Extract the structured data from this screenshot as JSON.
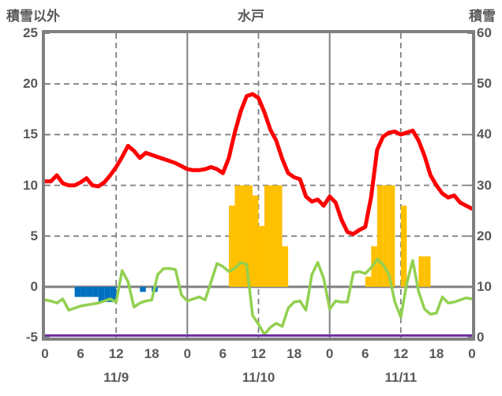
{
  "header": {
    "left_label": "積雪以外",
    "title": "水戸",
    "right_label": "積雪"
  },
  "colors": {
    "red_line": "#FF0000",
    "green_line": "#92D050",
    "orange_bars": "#FFC000",
    "blue_bars": "#0070C0",
    "purple_line": "#7030A0",
    "grid": "#808080",
    "border": "#808080",
    "text": "#595959"
  },
  "chart_data": {
    "type": "line",
    "title": "水戸",
    "left_axis": {
      "label": "積雪以外",
      "min": -5,
      "max": 25,
      "ticks": [
        25,
        20,
        15,
        10,
        5,
        0,
        -5
      ]
    },
    "right_axis": {
      "label": "積雪",
      "min": 0,
      "max": 60,
      "ticks": [
        60,
        50,
        40,
        30,
        20,
        10,
        0
      ]
    },
    "x_axis": {
      "total_hours": 72,
      "tick_hours": [
        0,
        6,
        12,
        18,
        24,
        30,
        36,
        42,
        48,
        54,
        60,
        66,
        72
      ],
      "tick_labels": [
        "0",
        "6",
        "12",
        "18",
        "0",
        "6",
        "12",
        "18",
        "0",
        "6",
        "12",
        "18",
        "0"
      ],
      "day_labels": [
        "11/9",
        "11/10",
        "11/11"
      ],
      "day_boundary_hours": [
        24,
        48
      ],
      "dashed_hours": [
        12,
        36,
        60
      ],
      "grid": "on",
      "legend": "none"
    },
    "series": [
      {
        "name": "red_line",
        "type": "line",
        "axis": "left",
        "values": [
          10.4,
          10.4,
          11.0,
          10.2,
          10.0,
          10.0,
          10.3,
          10.7,
          10.0,
          9.9,
          10.3,
          11.0,
          11.8,
          12.8,
          13.9,
          13.4,
          12.7,
          13.2,
          13.0,
          12.8,
          12.6,
          12.4,
          12.2,
          11.9,
          11.6,
          11.5,
          11.5,
          11.6,
          11.8,
          11.6,
          11.2,
          12.7,
          15.2,
          17.3,
          18.8,
          19.0,
          18.6,
          17.2,
          15.5,
          14.4,
          12.6,
          11.2,
          10.8,
          10.6,
          8.9,
          8.4,
          8.6,
          8.0,
          8.9,
          8.3,
          6.6,
          5.4,
          5.2,
          5.6,
          5.9,
          8.9,
          13.5,
          14.8,
          15.2,
          15.3,
          15.0,
          15.2,
          15.4,
          14.4,
          12.9,
          11.0,
          10.0,
          9.2,
          8.8,
          9.0,
          8.3,
          8.0,
          7.7
        ]
      },
      {
        "name": "green_line",
        "type": "line",
        "axis": "left",
        "values": [
          -1.3,
          -1.4,
          -1.6,
          -1.2,
          -2.3,
          -2.1,
          -1.9,
          -1.8,
          -1.7,
          -1.6,
          -1.4,
          -1.2,
          -1.5,
          1.6,
          0.5,
          -2.0,
          -1.6,
          -1.4,
          -1.3,
          1.2,
          1.8,
          1.8,
          1.7,
          -0.8,
          -1.4,
          -1.2,
          -1.0,
          -1.3,
          0.5,
          2.3,
          2.0,
          1.5,
          1.8,
          2.4,
          2.2,
          -2.8,
          -3.7,
          -4.7,
          -4.0,
          -3.6,
          -3.9,
          -2.1,
          -1.5,
          -1.4,
          -2.3,
          1.2,
          2.4,
          0.8,
          -2.2,
          -1.4,
          -1.5,
          -1.5,
          1.4,
          1.5,
          1.3,
          1.9,
          2.7,
          2.2,
          1.2,
          -1.5,
          -3.0,
          0.3,
          2.6,
          -0.5,
          -2.2,
          -2.7,
          -2.6,
          -1.0,
          -1.6,
          -1.5,
          -1.3,
          -1.1,
          -1.2
        ]
      },
      {
        "name": "orange_bars",
        "type": "bar",
        "axis": "left",
        "values": [
          0,
          0,
          0,
          0,
          0,
          0,
          0,
          0,
          0,
          0,
          0,
          0,
          0,
          0,
          0,
          0,
          0,
          0,
          0,
          0,
          0,
          0,
          0,
          0,
          0,
          0,
          0,
          0,
          0,
          0,
          0,
          8,
          10,
          10,
          10,
          9,
          6,
          10,
          10,
          10,
          4,
          0,
          0,
          0,
          0,
          0,
          0,
          0,
          0,
          0,
          0,
          0,
          0,
          0,
          1,
          4,
          10,
          10,
          10,
          0,
          8,
          0,
          0,
          3,
          3,
          0,
          0,
          0,
          0,
          0,
          0,
          0
        ]
      },
      {
        "name": "blue_bars",
        "type": "bar",
        "axis": "left",
        "values": [
          0,
          0,
          0,
          0,
          0,
          -1,
          -1,
          -1,
          -1,
          -1.5,
          -1.5,
          -1.5,
          0,
          0,
          0,
          0,
          -0.5,
          0,
          -0.5,
          0,
          0,
          0,
          0,
          0,
          0,
          0,
          0,
          0,
          0,
          0,
          0,
          0,
          0,
          0,
          0,
          0,
          0,
          0,
          0,
          0,
          0,
          0,
          0,
          0,
          0,
          0,
          0,
          0,
          0,
          0,
          0,
          0,
          0,
          0,
          0,
          0,
          0,
          0,
          0,
          0,
          0,
          0,
          0,
          0,
          0,
          0,
          0,
          0,
          0,
          0,
          0,
          0
        ]
      },
      {
        "name": "purple_line",
        "type": "line",
        "axis": "right",
        "constant_value": 0
      }
    ]
  }
}
